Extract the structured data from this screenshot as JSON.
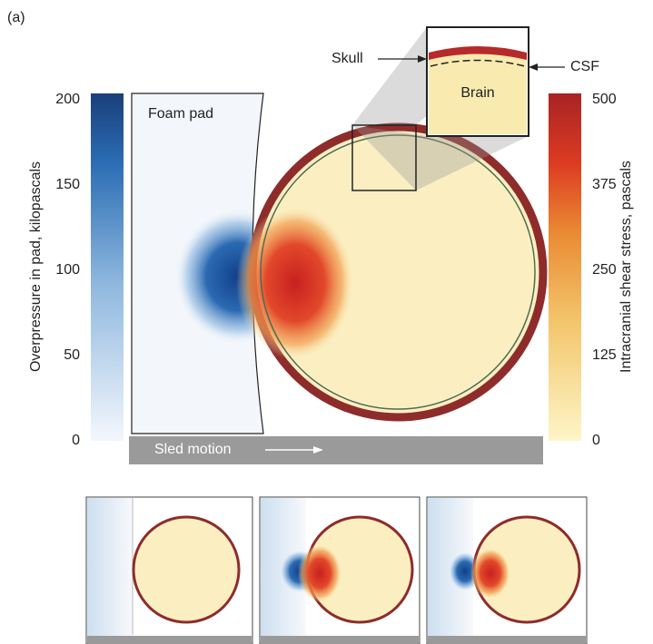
{
  "panel_label": "(a)",
  "left_colorbar": {
    "label": "Overpressure in pad, kilopascals",
    "ticks": [
      0,
      50,
      100,
      150,
      200
    ]
  },
  "right_colorbar": {
    "label": "Intracranial shear stress, pascals",
    "ticks": [
      0,
      125,
      250,
      375,
      500
    ]
  },
  "labels": {
    "foam_pad": "Foam pad",
    "sled_motion": "Sled motion",
    "skull": "Skull",
    "csf": "CSF",
    "brain": "Brain"
  }
}
